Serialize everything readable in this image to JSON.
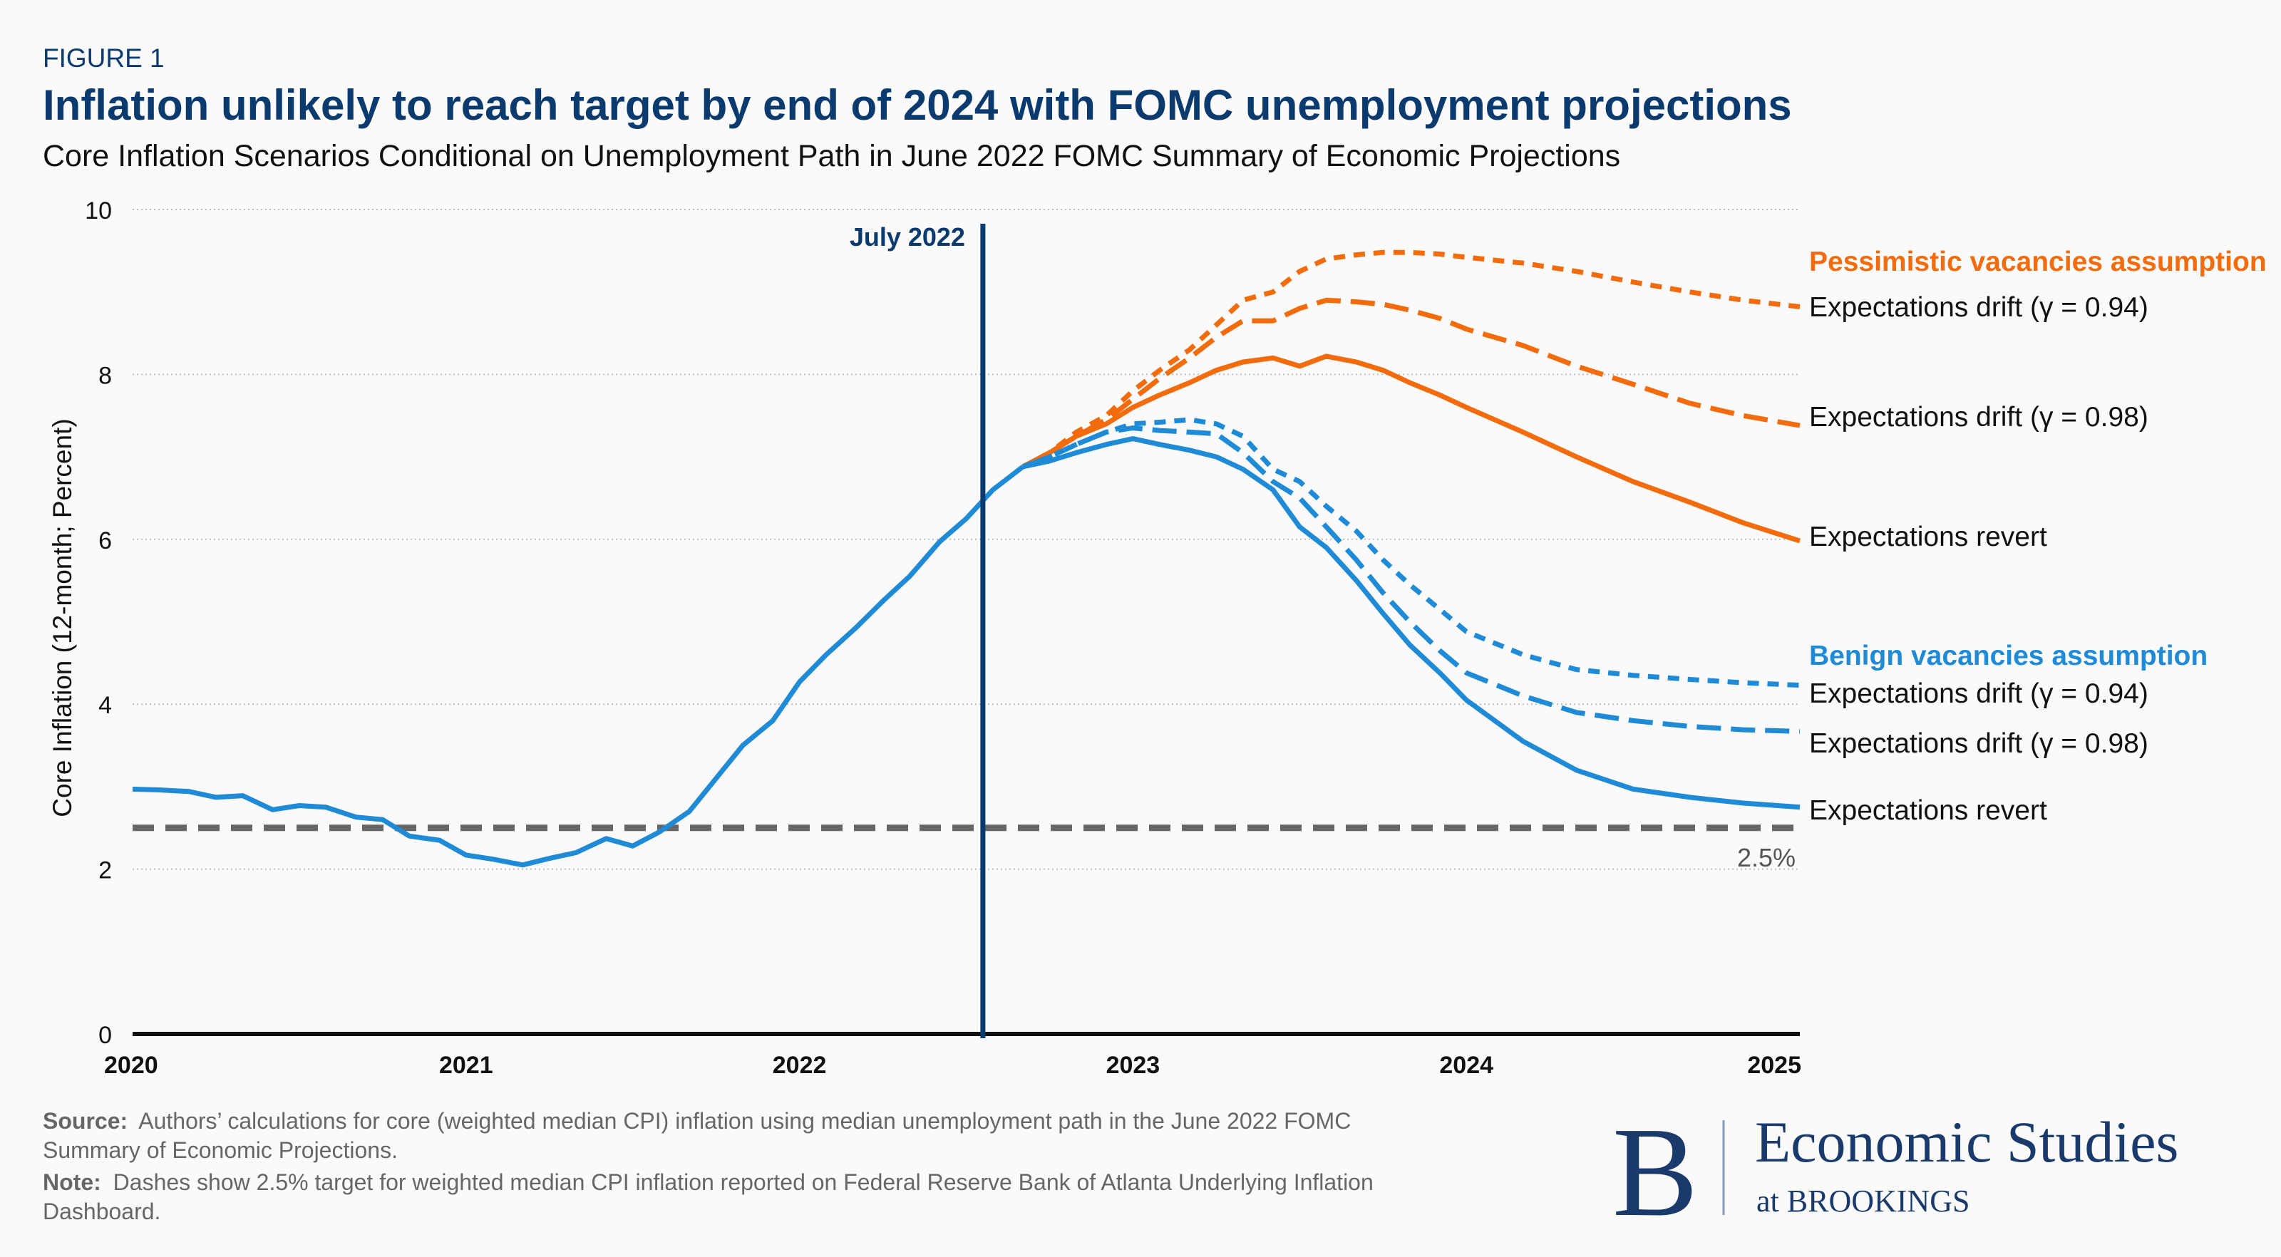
{
  "header": {
    "figure_label": "FIGURE 1",
    "title": "Inflation unlikely to reach target by end of 2024 with FOMC unemployment projections",
    "subtitle": "Core Inflation Scenarios Conditional on Unemployment Path in June 2022 FOMC Summary of Economic Projections"
  },
  "colors": {
    "navy": "#0b3a6e",
    "orange": "#f26c0d",
    "blue": "#1f8ad6",
    "target": "#666666",
    "text": "#111111",
    "note": "#666666"
  },
  "chart_data": {
    "type": "line",
    "title": "Inflation unlikely to reach target by end of 2024 with FOMC unemployment projections",
    "ylabel": "Core Inflation (12-month; Percent)",
    "xlabel": "",
    "xlim": [
      2020,
      2025
    ],
    "ylim": [
      0,
      10
    ],
    "x_ticks": [
      "2020",
      "2021",
      "2022",
      "2023",
      "2024",
      "2025"
    ],
    "y_ticks": [
      "0",
      "2",
      "4",
      "6",
      "8",
      "10"
    ],
    "grid": "horizontal dotted",
    "vertical_marker": {
      "x": 2022.55,
      "label": "July 2022"
    },
    "target_line": {
      "y": 2.5,
      "label": "2.5%"
    },
    "history": {
      "x": [
        2020.0,
        2020.08,
        2020.17,
        2020.25,
        2020.33,
        2020.42,
        2020.5,
        2020.58,
        2020.67,
        2020.75,
        2020.83,
        2020.92,
        2021.0,
        2021.08,
        2021.17,
        2021.25,
        2021.33,
        2021.42,
        2021.5,
        2021.58,
        2021.67,
        2021.75,
        2021.83,
        2021.92,
        2022.0,
        2022.08,
        2022.17,
        2022.25,
        2022.33,
        2022.42,
        2022.5,
        2022.58,
        2022.67
      ],
      "y": [
        2.97,
        2.96,
        2.94,
        2.87,
        2.89,
        2.72,
        2.77,
        2.75,
        2.63,
        2.6,
        2.4,
        2.35,
        2.17,
        2.12,
        2.05,
        2.13,
        2.2,
        2.37,
        2.28,
        2.45,
        2.7,
        3.1,
        3.5,
        3.8,
        4.27,
        4.6,
        4.93,
        5.25,
        5.55,
        5.97,
        6.25,
        6.6,
        6.88
      ]
    },
    "projection_x": [
      2022.67,
      2022.75,
      2022.83,
      2022.92,
      2023.0,
      2023.08,
      2023.17,
      2023.25,
      2023.33,
      2023.42,
      2023.5,
      2023.58,
      2023.67,
      2023.75,
      2023.83,
      2023.92,
      2024.0,
      2024.17,
      2024.33,
      2024.5,
      2024.67,
      2024.83,
      2025.0
    ],
    "groups": [
      {
        "name": "Pessimistic vacancies assumption",
        "color": "#f26c0d",
        "series": [
          {
            "name": "Expectations drift (γ = 0.94)",
            "style": "short-dash",
            "y": [
              6.88,
              7.05,
              7.3,
              7.5,
              7.8,
              8.05,
              8.3,
              8.6,
              8.9,
              9.0,
              9.25,
              9.4,
              9.45,
              9.48,
              9.48,
              9.46,
              9.42,
              9.35,
              9.25,
              9.12,
              9.0,
              8.9,
              8.82
            ]
          },
          {
            "name": "Expectations drift (γ = 0.98)",
            "style": "long-dash",
            "y": [
              6.88,
              7.05,
              7.25,
              7.45,
              7.7,
              7.95,
              8.2,
              8.45,
              8.65,
              8.65,
              8.8,
              8.9,
              8.88,
              8.85,
              8.78,
              8.68,
              8.55,
              8.35,
              8.1,
              7.88,
              7.65,
              7.5,
              7.38
            ]
          },
          {
            "name": "Expectations revert",
            "style": "solid",
            "y": [
              6.88,
              7.05,
              7.25,
              7.4,
              7.6,
              7.75,
              7.9,
              8.05,
              8.15,
              8.2,
              8.1,
              8.22,
              8.15,
              8.05,
              7.9,
              7.75,
              7.6,
              7.3,
              7.0,
              6.7,
              6.45,
              6.2,
              5.98
            ]
          }
        ]
      },
      {
        "name": "Benign vacancies assumption",
        "color": "#1f8ad6",
        "series": [
          {
            "name": "Expectations drift (γ = 0.94)",
            "style": "short-dash",
            "y": [
              6.88,
              7.0,
              7.15,
              7.3,
              7.4,
              7.42,
              7.45,
              7.4,
              7.25,
              6.85,
              6.7,
              6.4,
              6.1,
              5.75,
              5.45,
              5.15,
              4.88,
              4.6,
              4.42,
              4.35,
              4.3,
              4.26,
              4.23
            ]
          },
          {
            "name": "Expectations drift (γ = 0.98)",
            "style": "long-dash",
            "y": [
              6.88,
              7.0,
              7.15,
              7.3,
              7.35,
              7.32,
              7.3,
              7.28,
              7.05,
              6.7,
              6.5,
              6.15,
              5.75,
              5.35,
              5.0,
              4.65,
              4.38,
              4.1,
              3.9,
              3.8,
              3.73,
              3.69,
              3.67
            ]
          },
          {
            "name": "Expectations revert",
            "style": "solid",
            "y": [
              6.88,
              6.95,
              7.05,
              7.15,
              7.22,
              7.15,
              7.08,
              7.0,
              6.85,
              6.6,
              6.15,
              5.9,
              5.5,
              5.1,
              4.72,
              4.38,
              4.05,
              3.55,
              3.2,
              2.97,
              2.87,
              2.8,
              2.75
            ]
          }
        ]
      }
    ]
  },
  "footer": {
    "source_label": "Source:",
    "source_line1": "Authors’ calculations for core (weighted median CPI) inflation using median unemployment path in the June 2022 FOMC",
    "source_line2": "Summary of Economic Projections.",
    "note_label": "Note:",
    "note_line1": "Dashes show 2.5% target for weighted median CPI inflation reported on Federal Reserve Bank of Atlanta Underlying Inflation",
    "note_line2": "Dashboard.",
    "logo_letter": "B",
    "logo_title": "Economic Studies",
    "logo_sub": "at BROOKINGS"
  }
}
